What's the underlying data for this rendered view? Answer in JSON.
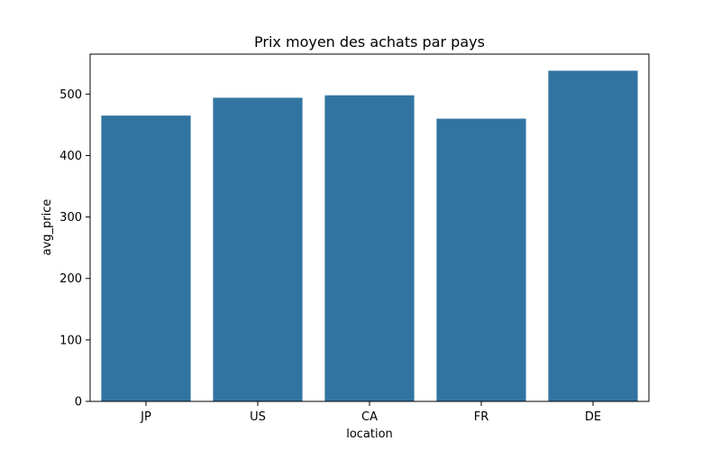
{
  "chart_data": {
    "type": "bar",
    "title": "Prix moyen des achats par pays",
    "xlabel": "location",
    "ylabel": "avg_price",
    "categories": [
      "JP",
      "US",
      "CA",
      "FR",
      "DE"
    ],
    "values": [
      465,
      494,
      498,
      460,
      538
    ],
    "ylim": [
      0,
      565
    ],
    "yticks": [
      0,
      100,
      200,
      300,
      400,
      500
    ],
    "bar_color": "#3274a1",
    "grid": false,
    "legend": "none"
  }
}
